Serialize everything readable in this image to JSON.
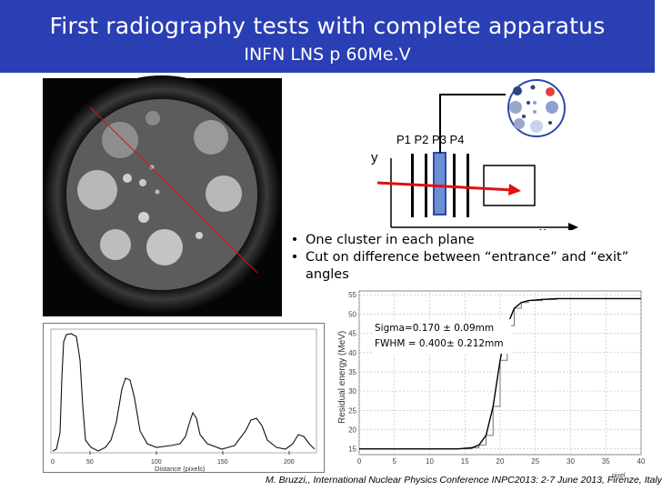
{
  "header": {
    "title": "First radiography tests with complete apparatus",
    "subtitle": "INFN LNS  p 60Me.V"
  },
  "diagram": {
    "axis_y": "y",
    "axis_x": "x",
    "planes_label": "P1 P2   P3 P4"
  },
  "bullets": [
    "One cluster in each plane",
    "Cut on  difference between “entrance” and “exit”"
  ],
  "bullet_continuation": "angles",
  "profile_plot": {
    "xlabel": "Distance (pixels)",
    "x_ticks": [
      "0",
      "50",
      "100",
      "150",
      "200"
    ]
  },
  "chart_data": {
    "type": "line",
    "ylabel": "Residual energy (MeV)",
    "xlabel": "pixel",
    "xlim": [
      0,
      40
    ],
    "ylim": [
      13.5,
      56
    ],
    "x_ticks": [
      "0",
      "5",
      "10",
      "15",
      "20",
      "25",
      "30",
      "35",
      "40"
    ],
    "y_ticks": [
      "15",
      "20",
      "25",
      "30",
      "35",
      "40",
      "45",
      "50",
      "55"
    ],
    "annotation_lines": [
      "Sigma=0.170  ± 0.09mm",
      "FWHM = 0.400± 0.212mm"
    ],
    "series": [
      {
        "x": [
          0,
          2,
          4,
          6,
          8,
          10,
          12,
          14,
          16,
          17,
          18,
          19,
          20,
          21,
          22,
          23,
          24,
          26,
          28,
          30,
          32,
          34,
          36,
          38,
          40
        ],
        "y": [
          15,
          15,
          15,
          15,
          15,
          15,
          15,
          15,
          15.3,
          16,
          18.5,
          26,
          38,
          47,
          51.5,
          53,
          53.5,
          53.8,
          54,
          54,
          54,
          54,
          54,
          54,
          54
        ]
      }
    ]
  },
  "footer": {
    "citation": "M. Bruzzi,, International Nuclear Physics Conference INPC2013: 2-7 June 2013, Firenze, Italy"
  },
  "colors": {
    "header_bg": "#2a3fb3",
    "track": "#e01010",
    "detector_plane": "#3b64b8"
  }
}
